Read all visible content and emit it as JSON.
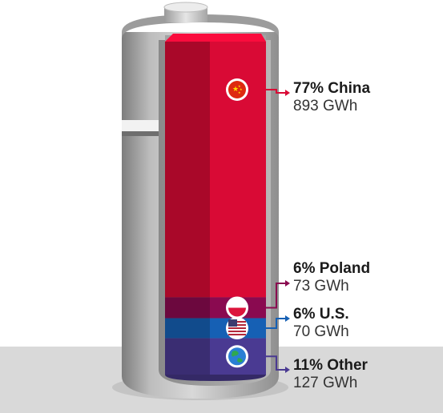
{
  "chart_data": {
    "type": "stacked-bar",
    "title": "",
    "unit": "GWh",
    "series": [
      {
        "name": "China",
        "percent_label": "77% China",
        "value_label": "893 GWh",
        "value": 893,
        "share": 77,
        "color": "#d90a35",
        "icon": "china-flag-icon"
      },
      {
        "name": "Poland",
        "percent_label": "6% Poland",
        "value_label": "73 GWh",
        "value": 73,
        "share": 6,
        "color": "#8a0a50",
        "icon": "poland-flag-icon"
      },
      {
        "name": "U.S.",
        "percent_label": "6% U.S.",
        "value_label": "70 GWh",
        "value": 70,
        "share": 6,
        "color": "#1660b4",
        "icon": "us-flag-icon"
      },
      {
        "name": "Other",
        "percent_label": "11% Other",
        "value_label": "127 GWh",
        "value": 127,
        "share": 11,
        "color": "#4a3a92",
        "icon": "globe-icon"
      }
    ]
  }
}
